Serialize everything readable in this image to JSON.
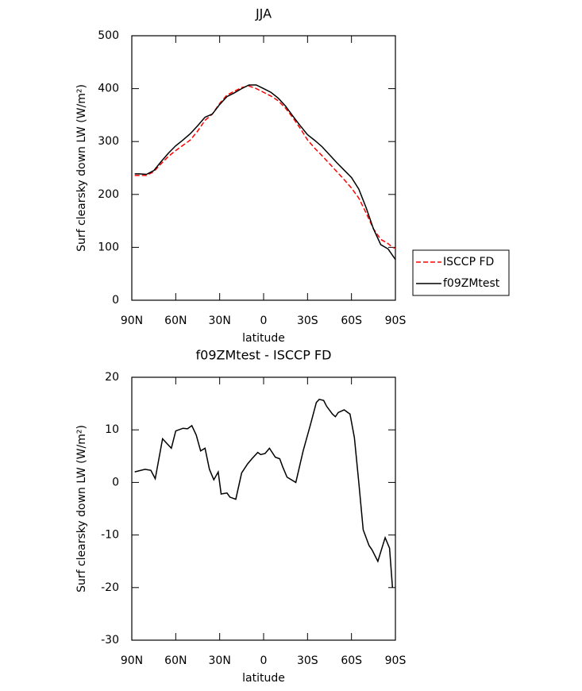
{
  "chart_data": [
    {
      "type": "line",
      "title": "JJA",
      "x_label": "latitude",
      "y_label": "Surf clearsky down LW (W/m²)",
      "x": [
        88,
        85,
        80,
        75,
        70,
        65,
        60,
        55,
        50,
        45,
        40,
        35,
        30,
        25,
        20,
        15,
        10,
        5,
        0,
        -5,
        -10,
        -15,
        -20,
        -25,
        -30,
        -35,
        -40,
        -45,
        -50,
        -55,
        -60,
        -65,
        -70,
        -75,
        -80,
        -85,
        -88,
        -90
      ],
      "series": [
        {
          "name": "ISCCP FD",
          "color": "#ff0000",
          "dashed": true,
          "values": [
            236,
            236,
            236,
            243,
            258,
            272,
            283,
            293,
            303,
            320,
            340,
            352,
            372,
            388,
            395,
            402,
            405,
            400,
            393,
            386,
            377,
            363,
            345,
            325,
            303,
            287,
            273,
            258,
            243,
            228,
            212,
            193,
            165,
            135,
            115,
            107,
            100,
            98
          ]
        },
        {
          "name": "f09ZMtest",
          "color": "#000000",
          "dashed": false,
          "values": [
            239,
            239,
            238,
            245,
            262,
            278,
            292,
            303,
            315,
            330,
            346,
            352,
            370,
            385,
            392,
            400,
            407,
            407,
            400,
            393,
            382,
            367,
            348,
            330,
            313,
            302,
            290,
            275,
            260,
            246,
            232,
            210,
            175,
            135,
            105,
            97,
            85,
            77
          ]
        }
      ],
      "xlim": [
        90,
        -90
      ],
      "xticks": [
        {
          "value": 90,
          "label": "90N"
        },
        {
          "value": 60,
          "label": "60N"
        },
        {
          "value": 30,
          "label": "30N"
        },
        0,
        {
          "value": -30,
          "label": "30S"
        },
        {
          "value": -60,
          "label": "60S"
        },
        {
          "value": -90,
          "label": "90S"
        }
      ],
      "ylim": [
        0,
        500
      ],
      "yticks": [
        0,
        100,
        200,
        300,
        400,
        500
      ],
      "legend": "right"
    },
    {
      "type": "line",
      "title": "f09ZMtest - ISCCP FD",
      "x_label": "latitude",
      "y_label": "Surf clearsky down LW (W/m²)",
      "x": [
        88,
        81,
        77,
        74,
        69,
        63,
        60,
        55,
        52,
        49,
        46,
        43,
        40,
        37,
        34,
        31,
        29,
        25,
        23,
        19,
        15,
        11,
        8,
        4,
        2,
        -1,
        -4,
        -8,
        -11,
        -13,
        -16,
        -22,
        -27,
        -32,
        -36,
        -38,
        -41,
        -43,
        -47,
        -49,
        -51,
        -55,
        -59,
        -62,
        -65,
        -68,
        -72,
        -74,
        -78,
        -83,
        -86,
        -88
      ],
      "series": [
        {
          "name": "f09ZMtest - ISCCP FD",
          "color": "#000000",
          "dashed": false,
          "values": [
            2,
            2.5,
            2.3,
            0.7,
            8.3,
            6.5,
            9.8,
            10.3,
            10.2,
            10.8,
            9,
            6,
            6.5,
            2.5,
            0.5,
            2,
            -2.2,
            -2,
            -2.8,
            -3.2,
            1.8,
            3.5,
            4.5,
            5.7,
            5.3,
            5.5,
            6.5,
            4.8,
            4.5,
            3,
            1,
            0,
            6,
            11,
            15.2,
            15.8,
            15.6,
            14.5,
            13,
            12.5,
            13.3,
            13.8,
            13,
            8.5,
            0,
            -9,
            -12,
            -12.8,
            -15,
            -10.5,
            -12.5,
            -20
          ]
        }
      ],
      "xlim": [
        90,
        -90
      ],
      "xticks": [
        {
          "value": 90,
          "label": "90N"
        },
        {
          "value": 60,
          "label": "60N"
        },
        {
          "value": 30,
          "label": "30N"
        },
        0,
        {
          "value": -30,
          "label": "30S"
        },
        {
          "value": -60,
          "label": "60S"
        },
        {
          "value": -90,
          "label": "90S"
        }
      ],
      "ylim": [
        -30,
        20
      ],
      "yticks": [
        -30,
        -20,
        -10,
        0,
        10,
        20
      ]
    }
  ]
}
